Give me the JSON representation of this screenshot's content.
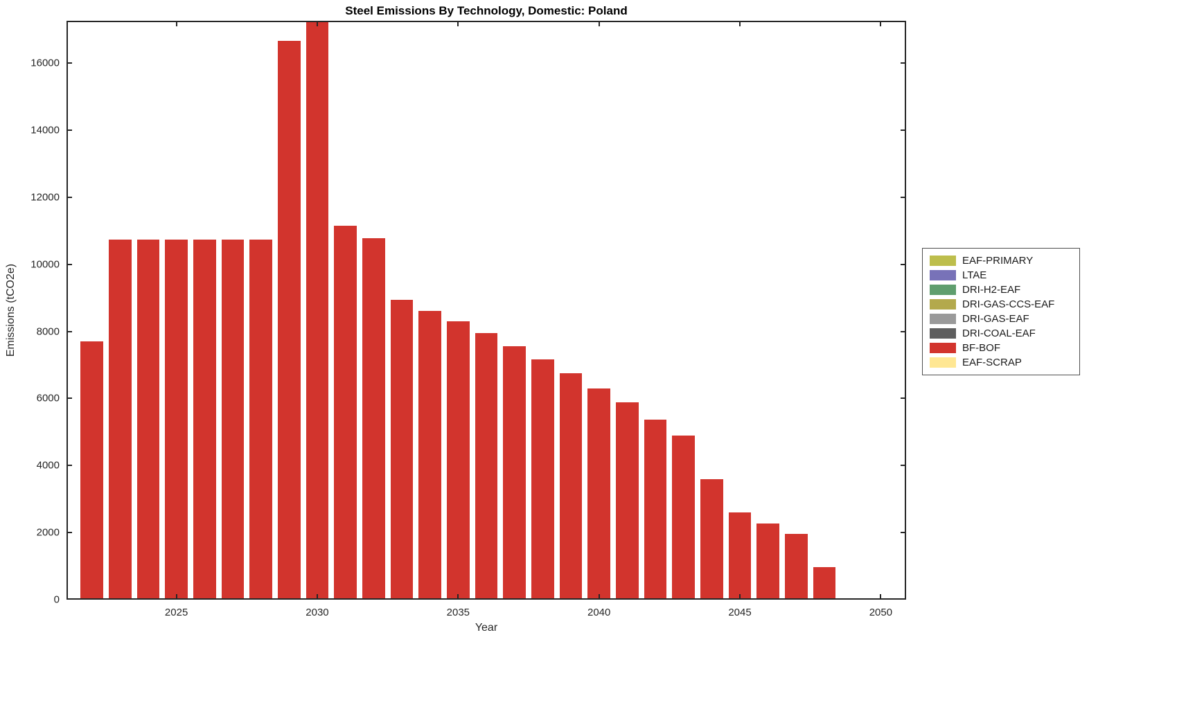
{
  "chart_data": {
    "type": "bar",
    "title": "Steel Emissions By Technology, Domestic: Poland",
    "xlabel": "Year",
    "ylabel": "Emissions (tCO2e)",
    "xlim": [
      2021.1,
      2050.9
    ],
    "ylim": [
      0,
      17260
    ],
    "x_ticks": [
      2025,
      2030,
      2035,
      2040,
      2045,
      2050
    ],
    "y_ticks": [
      0,
      2000,
      4000,
      6000,
      8000,
      10000,
      12000,
      14000,
      16000
    ],
    "grid": false,
    "legend_position": "outside-right",
    "bar_series": {
      "name": "BF-BOF",
      "color": "#D2342D",
      "years": [
        2022,
        2023,
        2024,
        2025,
        2026,
        2027,
        2028,
        2029,
        2030,
        2031,
        2032,
        2033,
        2034,
        2035,
        2036,
        2037,
        2038,
        2039,
        2040,
        2041,
        2042,
        2043,
        2044,
        2045,
        2046,
        2047,
        2048
      ],
      "values": [
        7700,
        10730,
        10730,
        10730,
        10730,
        10730,
        10730,
        16660,
        17300,
        11150,
        10780,
        8940,
        8610,
        8300,
        7950,
        7560,
        7160,
        6750,
        6300,
        5880,
        5370,
        4890,
        3590,
        2600,
        2270,
        1960,
        970
      ]
    },
    "legend": [
      {
        "label": "EAF-PRIMARY",
        "color": "#BDBE4C"
      },
      {
        "label": "LTAE",
        "color": "#7872B8"
      },
      {
        "label": "DRI-H2-EAF",
        "color": "#5F9E6E"
      },
      {
        "label": "DRI-GAS-CCS-EAF",
        "color": "#B3A94C"
      },
      {
        "label": "DRI-GAS-EAF",
        "color": "#9A9A9A"
      },
      {
        "label": "DRI-COAL-EAF",
        "color": "#5E5E5E"
      },
      {
        "label": "BF-BOF",
        "color": "#D2342D"
      },
      {
        "label": "EAF-SCRAP",
        "color": "#FFE793"
      }
    ]
  }
}
